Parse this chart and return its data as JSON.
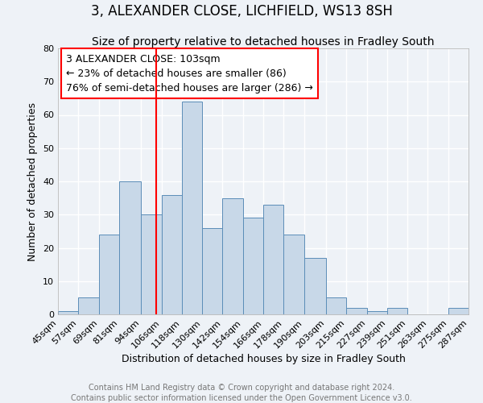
{
  "title": "3, ALEXANDER CLOSE, LICHFIELD, WS13 8SH",
  "subtitle": "Size of property relative to detached houses in Fradley South",
  "xlabel": "Distribution of detached houses by size in Fradley South",
  "ylabel": "Number of detached properties",
  "bin_labels": [
    "45sqm",
    "57sqm",
    "69sqm",
    "81sqm",
    "94sqm",
    "106sqm",
    "118sqm",
    "130sqm",
    "142sqm",
    "154sqm",
    "166sqm",
    "178sqm",
    "190sqm",
    "203sqm",
    "215sqm",
    "227sqm",
    "239sqm",
    "251sqm",
    "263sqm",
    "275sqm",
    "287sqm"
  ],
  "bin_edges": [
    45,
    57,
    69,
    81,
    94,
    106,
    118,
    130,
    142,
    154,
    166,
    178,
    190,
    203,
    215,
    227,
    239,
    251,
    263,
    275,
    287
  ],
  "bar_heights": [
    1,
    5,
    24,
    40,
    30,
    36,
    64,
    26,
    35,
    29,
    33,
    24,
    17,
    5,
    2,
    1,
    2,
    0,
    0,
    2
  ],
  "bar_color": "#c8d8e8",
  "bar_edge_color": "#5b8db8",
  "vline_x": 103,
  "vline_color": "red",
  "ylim": [
    0,
    80
  ],
  "yticks": [
    0,
    10,
    20,
    30,
    40,
    50,
    60,
    70,
    80
  ],
  "annotation_text": "3 ALEXANDER CLOSE: 103sqm\n← 23% of detached houses are smaller (86)\n76% of semi-detached houses are larger (286) →",
  "annotation_box_color": "#ffffff",
  "annotation_box_edge": "red",
  "footer_line1": "Contains HM Land Registry data © Crown copyright and database right 2024.",
  "footer_line2": "Contains public sector information licensed under the Open Government Licence v3.0.",
  "bg_color": "#eef2f7",
  "grid_color": "#ffffff",
  "title_fontsize": 12,
  "subtitle_fontsize": 10,
  "axis_label_fontsize": 9,
  "tick_fontsize": 8,
  "annotation_fontsize": 9,
  "footer_fontsize": 7
}
